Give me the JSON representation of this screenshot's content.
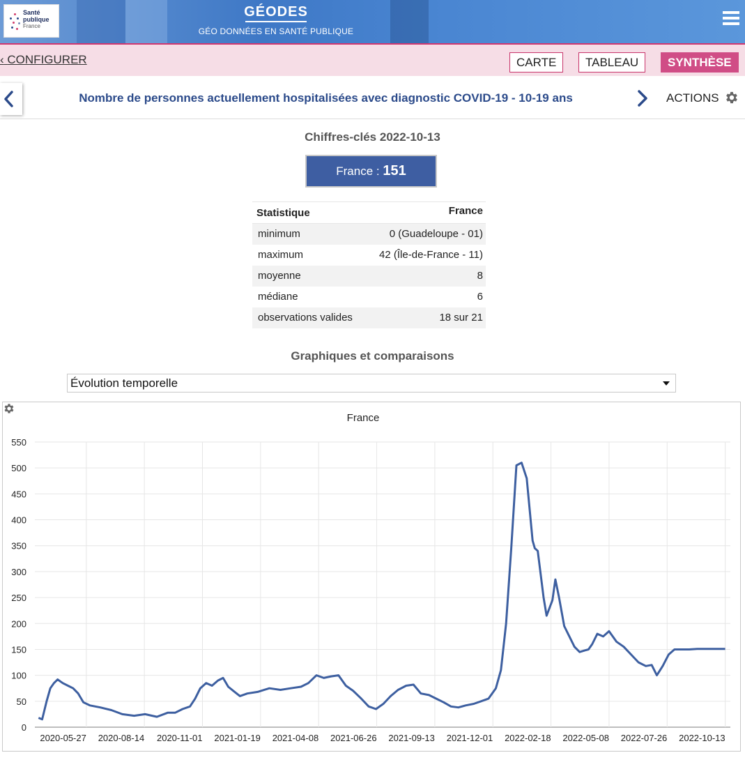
{
  "header": {
    "logo_line1": "Santé",
    "logo_line2": "publique",
    "logo_line3": "France",
    "app_title": "GÉODES",
    "app_subtitle": "GÉO DONNÉES EN SANTÉ PUBLIQUE"
  },
  "subbar": {
    "configure_label": "CONFIGURER",
    "tabs": [
      {
        "label": "CARTE"
      },
      {
        "label": "TABLEAU"
      },
      {
        "label": "SYNTHÈSE"
      }
    ],
    "active_tab": "SYNTHÈSE"
  },
  "indicator": {
    "title": "Nombre de personnes actuellement hospitalisées avec diagnostic COVID-19 - 10-19 ans",
    "actions_label": "ACTIONS"
  },
  "key_figures": {
    "title": "Chiffres-clés 2022-10-13",
    "box_label": "France : ",
    "box_value": "151",
    "table": {
      "col_stat": "Statistique",
      "col_france": "France",
      "rows": [
        {
          "label": "minimum",
          "value": "0 (Guadeloupe - 01)"
        },
        {
          "label": "maximum",
          "value": "42 (Île-de-France - 11)"
        },
        {
          "label": "moyenne",
          "value": "8"
        },
        {
          "label": "médiane",
          "value": "6"
        },
        {
          "label": "observations valides",
          "value": "18 sur 21"
        }
      ]
    }
  },
  "charts_section": {
    "title": "Graphiques et comparaisons",
    "selected_option": "Évolution temporelle"
  },
  "colors": {
    "header_blue": "#3e78c6",
    "accent_pink": "#d04d86",
    "subbar_bg": "#f6dde6",
    "key_box": "#3e5ea2",
    "series_line": "#3d5fa0",
    "title_blue": "#2b4a8a"
  },
  "icons": {
    "menu": "hamburger-icon",
    "prev": "chevron-left-icon",
    "next": "chevron-right-icon",
    "actions": "gear-icon",
    "chart_settings": "gear-icon"
  },
  "chart_data": {
    "type": "line",
    "title": "France",
    "xlabel": "",
    "ylabel": "",
    "ylim": [
      0,
      550
    ],
    "yticks": [
      0,
      50,
      100,
      150,
      200,
      250,
      300,
      350,
      400,
      450,
      500,
      550
    ],
    "xlim": [
      "2020-03-18",
      "2022-10-20"
    ],
    "xticks": [
      "2020-05-27",
      "2020-08-14",
      "2020-11-01",
      "2021-01-19",
      "2021-04-08",
      "2021-06-26",
      "2021-09-13",
      "2021-12-01",
      "2022-02-18",
      "2022-05-08",
      "2022-07-26",
      "2022-10-13"
    ],
    "grid": true,
    "legend": "none",
    "series": [
      {
        "name": "France",
        "x": [
          "2020-03-23",
          "2020-03-28",
          "2020-04-03",
          "2020-04-08",
          "2020-04-13",
          "2020-04-18",
          "2020-04-25",
          "2020-05-02",
          "2020-05-09",
          "2020-05-16",
          "2020-05-23",
          "2020-06-01",
          "2020-06-15",
          "2020-06-30",
          "2020-07-15",
          "2020-07-31",
          "2020-08-15",
          "2020-08-31",
          "2020-09-15",
          "2020-09-25",
          "2020-10-05",
          "2020-10-15",
          "2020-10-22",
          "2020-10-29",
          "2020-11-06",
          "2020-11-14",
          "2020-11-22",
          "2020-11-29",
          "2020-12-06",
          "2020-12-13",
          "2020-12-22",
          "2021-01-01",
          "2021-01-15",
          "2021-01-31",
          "2021-02-15",
          "2021-03-01",
          "2021-03-15",
          "2021-03-25",
          "2021-04-05",
          "2021-04-15",
          "2021-04-25",
          "2021-05-05",
          "2021-05-15",
          "2021-05-25",
          "2021-06-05",
          "2021-06-15",
          "2021-06-25",
          "2021-07-05",
          "2021-07-15",
          "2021-07-25",
          "2021-08-05",
          "2021-08-15",
          "2021-08-25",
          "2021-09-05",
          "2021-09-15",
          "2021-09-25",
          "2021-10-05",
          "2021-10-15",
          "2021-10-25",
          "2021-11-05",
          "2021-11-15",
          "2021-11-25",
          "2021-12-05",
          "2021-12-12",
          "2021-12-19",
          "2021-12-26",
          "2022-01-02",
          "2022-01-09",
          "2022-01-16",
          "2022-01-20",
          "2022-01-24",
          "2022-01-27",
          "2022-01-31",
          "2022-02-04",
          "2022-02-08",
          "2022-02-12",
          "2022-02-16",
          "2022-02-20",
          "2022-02-24",
          "2022-03-01",
          "2022-03-08",
          "2022-03-15",
          "2022-03-22",
          "2022-03-29",
          "2022-04-05",
          "2022-04-10",
          "2022-04-15",
          "2022-04-22",
          "2022-04-30",
          "2022-05-08",
          "2022-05-18",
          "2022-05-28",
          "2022-06-07",
          "2022-06-17",
          "2022-06-27",
          "2022-07-05",
          "2022-07-12",
          "2022-07-20",
          "2022-07-28",
          "2022-08-05",
          "2022-08-15",
          "2022-08-25",
          "2022-09-05",
          "2022-09-12",
          "2022-09-20",
          "2022-09-28",
          "2022-10-06",
          "2022-10-13"
        ],
        "values": [
          18,
          15,
          50,
          75,
          85,
          92,
          85,
          80,
          75,
          65,
          48,
          42,
          38,
          33,
          25,
          22,
          25,
          20,
          28,
          28,
          35,
          40,
          55,
          75,
          85,
          80,
          90,
          95,
          78,
          70,
          60,
          65,
          68,
          75,
          72,
          75,
          78,
          85,
          100,
          95,
          98,
          100,
          80,
          70,
          55,
          40,
          35,
          45,
          60,
          72,
          80,
          82,
          65,
          62,
          55,
          48,
          40,
          38,
          42,
          45,
          50,
          55,
          75,
          110,
          200,
          345,
          505,
          510,
          480,
          420,
          360,
          345,
          340,
          295,
          250,
          215,
          230,
          245,
          285,
          250,
          195,
          175,
          155,
          145,
          148,
          150,
          160,
          180,
          175,
          185,
          165,
          155,
          140,
          125,
          118,
          120,
          100,
          118,
          140,
          150,
          150,
          150,
          151,
          151,
          151,
          151,
          151,
          151
        ]
      }
    ]
  }
}
